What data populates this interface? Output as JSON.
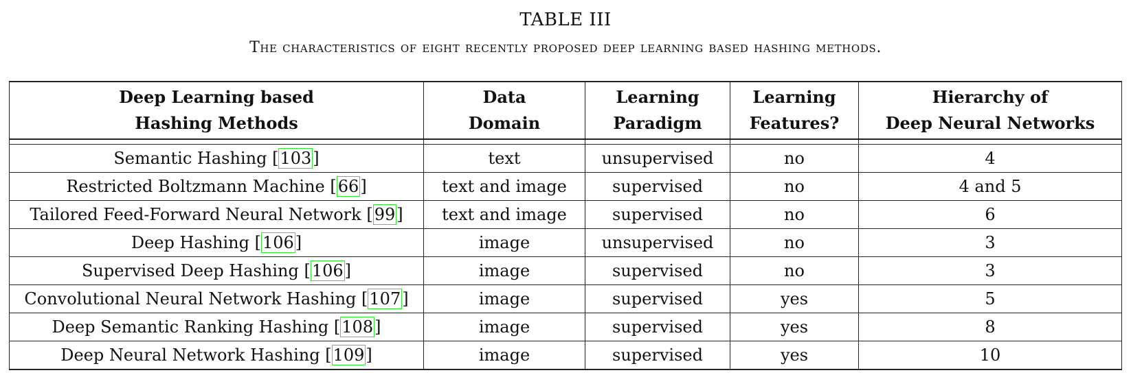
{
  "table_label": "TABLE III",
  "caption": "The characteristics of eight recently proposed deep learning based hashing methods.",
  "headers": [
    [
      "Deep Learning based",
      "Hashing Methods"
    ],
    [
      "Data",
      "Domain"
    ],
    [
      "Learning",
      "Paradigm"
    ],
    [
      "Learning",
      "Features?"
    ],
    [
      "Hierarchy of",
      "Deep Neural Networks"
    ]
  ],
  "rows": [
    {
      "method": "Semantic Hashing",
      "ref": "103",
      "domain": "text",
      "paradigm": "unsupervised",
      "features": "no",
      "hierarchy": "4"
    },
    {
      "method": "Restricted Boltzmann Machine",
      "ref": "66",
      "domain": "text and image",
      "paradigm": "supervised",
      "features": "no",
      "hierarchy": "4 and 5"
    },
    {
      "method": "Tailored Feed-Forward Neural Network",
      "ref": "99",
      "domain": "text and image",
      "paradigm": "supervised",
      "features": "no",
      "hierarchy": "6"
    },
    {
      "method": "Deep Hashing",
      "ref": "106",
      "domain": "image",
      "paradigm": "unsupervised",
      "features": "no",
      "hierarchy": "3"
    },
    {
      "method": "Supervised Deep Hashing",
      "ref": "106",
      "domain": "image",
      "paradigm": "supervised",
      "features": "no",
      "hierarchy": "3"
    },
    {
      "method": "Convolutional Neural Network Hashing",
      "ref": "107",
      "domain": "image",
      "paradigm": "supervised",
      "features": "yes",
      "hierarchy": "5"
    },
    {
      "method": "Deep Semantic Ranking Hashing",
      "ref": "108",
      "domain": "image",
      "paradigm": "supervised",
      "features": "yes",
      "hierarchy": "8"
    },
    {
      "method": "Deep Neural Network Hashing",
      "ref": "109",
      "domain": "image",
      "paradigm": "supervised",
      "features": "yes",
      "hierarchy": "10"
    }
  ],
  "colors": {
    "citation_box": "#2ee82e",
    "rule": "#222222",
    "text": "#111111"
  }
}
